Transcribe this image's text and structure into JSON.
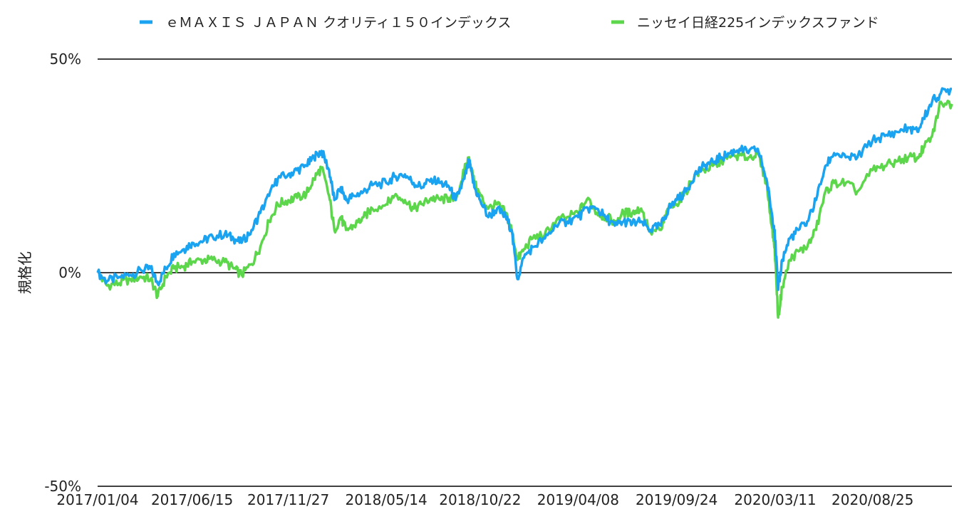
{
  "chart_data": {
    "type": "line",
    "title": "",
    "xlabel": "",
    "ylabel": "規格化",
    "yunit": "%",
    "ylim": [
      -50,
      50
    ],
    "yticks": [
      {
        "value": 50,
        "label": "50%"
      },
      {
        "value": 0,
        "label": "0%"
      },
      {
        "value": -50,
        "label": "-50%"
      }
    ],
    "xlim": [
      "2017-01-04",
      "2021-01-08"
    ],
    "xticks": [
      {
        "date": "2017-01-04",
        "label": "2017/01/04"
      },
      {
        "date": "2017-06-15",
        "label": "2017/06/15"
      },
      {
        "date": "2017-11-27",
        "label": "2017/11/27"
      },
      {
        "date": "2018-05-14",
        "label": "2018/05/14"
      },
      {
        "date": "2018-10-22",
        "label": "2018/10/22"
      },
      {
        "date": "2019-04-08",
        "label": "2019/04/08"
      },
      {
        "date": "2019-09-24",
        "label": "2019/09/24"
      },
      {
        "date": "2020-03-11",
        "label": "2020/03/11"
      },
      {
        "date": "2020-08-25",
        "label": "2020/08/25"
      }
    ],
    "grid": true,
    "legend_position": "top",
    "series": [
      {
        "name": "ｅＭＡＸＩＳ ＪＡＰＡＮ クオリティ１５０インデックス",
        "color": "#1aa3f0",
        "points": [
          [
            "2017-01-04",
            0
          ],
          [
            "2017-01-20",
            -2
          ],
          [
            "2017-02-10",
            -1
          ],
          [
            "2017-03-01",
            -0.5
          ],
          [
            "2017-03-20",
            0.5
          ],
          [
            "2017-04-05",
            1
          ],
          [
            "2017-04-17",
            -2.5
          ],
          [
            "2017-05-01",
            1
          ],
          [
            "2017-05-15",
            4.5
          ],
          [
            "2017-06-01",
            5.5
          ],
          [
            "2017-06-15",
            7
          ],
          [
            "2017-07-05",
            7.5
          ],
          [
            "2017-07-20",
            8.5
          ],
          [
            "2017-08-10",
            9
          ],
          [
            "2017-08-25",
            8
          ],
          [
            "2017-09-08",
            7
          ],
          [
            "2017-09-25",
            10
          ],
          [
            "2017-10-10",
            14
          ],
          [
            "2017-10-25",
            18
          ],
          [
            "2017-11-09",
            22
          ],
          [
            "2017-11-27",
            23
          ],
          [
            "2017-12-12",
            24
          ],
          [
            "2017-12-28",
            25
          ],
          [
            "2018-01-10",
            27
          ],
          [
            "2018-01-23",
            28.5
          ],
          [
            "2018-02-05",
            24
          ],
          [
            "2018-02-14",
            17
          ],
          [
            "2018-02-25",
            20
          ],
          [
            "2018-03-06",
            17
          ],
          [
            "2018-03-20",
            18
          ],
          [
            "2018-04-05",
            19
          ],
          [
            "2018-04-20",
            20.5
          ],
          [
            "2018-05-14",
            21
          ],
          [
            "2018-05-28",
            22.5
          ],
          [
            "2018-06-15",
            23
          ],
          [
            "2018-06-30",
            21
          ],
          [
            "2018-07-15",
            20
          ],
          [
            "2018-07-30",
            22
          ],
          [
            "2018-08-15",
            21
          ],
          [
            "2018-08-30",
            20
          ],
          [
            "2018-09-10",
            17
          ],
          [
            "2018-09-25",
            22
          ],
          [
            "2018-10-03",
            26
          ],
          [
            "2018-10-12",
            20
          ],
          [
            "2018-10-22",
            17
          ],
          [
            "2018-11-05",
            13
          ],
          [
            "2018-11-20",
            15
          ],
          [
            "2018-12-05",
            13
          ],
          [
            "2018-12-15",
            10
          ],
          [
            "2018-12-25",
            -1.5
          ],
          [
            "2019-01-05",
            3.5
          ],
          [
            "2019-01-20",
            6
          ],
          [
            "2019-02-10",
            8
          ],
          [
            "2019-03-01",
            11
          ],
          [
            "2019-03-20",
            12
          ],
          [
            "2019-04-08",
            13
          ],
          [
            "2019-04-25",
            15
          ],
          [
            "2019-05-10",
            15
          ],
          [
            "2019-05-25",
            13
          ],
          [
            "2019-06-10",
            11
          ],
          [
            "2019-06-25",
            12
          ],
          [
            "2019-07-10",
            11.5
          ],
          [
            "2019-07-25",
            12
          ],
          [
            "2019-08-10",
            10
          ],
          [
            "2019-08-28",
            11
          ],
          [
            "2019-09-10",
            15
          ],
          [
            "2019-09-24",
            17
          ],
          [
            "2019-10-10",
            19
          ],
          [
            "2019-10-25",
            23
          ],
          [
            "2019-11-10",
            25
          ],
          [
            "2019-11-25",
            26
          ],
          [
            "2019-12-10",
            27
          ],
          [
            "2019-12-25",
            28
          ],
          [
            "2020-01-10",
            29
          ],
          [
            "2020-01-25",
            28
          ],
          [
            "2020-02-10",
            29
          ],
          [
            "2020-02-25",
            22
          ],
          [
            "2020-03-05",
            14
          ],
          [
            "2020-03-10",
            10
          ],
          [
            "2020-03-16",
            -4
          ],
          [
            "2020-03-23",
            3
          ],
          [
            "2020-04-05",
            8
          ],
          [
            "2020-04-20",
            10
          ],
          [
            "2020-05-05",
            12
          ],
          [
            "2020-05-20",
            17
          ],
          [
            "2020-06-05",
            25
          ],
          [
            "2020-06-20",
            28
          ],
          [
            "2020-07-10",
            27
          ],
          [
            "2020-07-30",
            27
          ],
          [
            "2020-08-25",
            31
          ],
          [
            "2020-09-15",
            32
          ],
          [
            "2020-10-05",
            33
          ],
          [
            "2020-10-25",
            34
          ],
          [
            "2020-11-10",
            33
          ],
          [
            "2020-11-20",
            36
          ],
          [
            "2020-12-05",
            40
          ],
          [
            "2020-12-20",
            42
          ],
          [
            "2021-01-08",
            43
          ]
        ]
      },
      {
        "name": "ニッセイ日経225インデックスファンド",
        "color": "#5cd64a",
        "points": [
          [
            "2017-01-04",
            0
          ],
          [
            "2017-01-20",
            -3
          ],
          [
            "2017-02-10",
            -2.5
          ],
          [
            "2017-03-01",
            -1.5
          ],
          [
            "2017-03-20",
            -1
          ],
          [
            "2017-04-05",
            -1.5
          ],
          [
            "2017-04-17",
            -5.5
          ],
          [
            "2017-05-01",
            -1
          ],
          [
            "2017-05-15",
            1
          ],
          [
            "2017-06-01",
            1.5
          ],
          [
            "2017-06-15",
            2.5
          ],
          [
            "2017-07-05",
            3
          ],
          [
            "2017-07-20",
            3
          ],
          [
            "2017-08-10",
            2.5
          ],
          [
            "2017-08-25",
            1
          ],
          [
            "2017-09-08",
            -0.5
          ],
          [
            "2017-09-25",
            2
          ],
          [
            "2017-10-10",
            6
          ],
          [
            "2017-10-25",
            12
          ],
          [
            "2017-11-09",
            16
          ],
          [
            "2017-11-27",
            17
          ],
          [
            "2017-12-12",
            17.5
          ],
          [
            "2017-12-28",
            18.5
          ],
          [
            "2018-01-10",
            22
          ],
          [
            "2018-01-23",
            24.5
          ],
          [
            "2018-02-05",
            18
          ],
          [
            "2018-02-14",
            10
          ],
          [
            "2018-02-25",
            13
          ],
          [
            "2018-03-06",
            10
          ],
          [
            "2018-03-20",
            11
          ],
          [
            "2018-04-05",
            13
          ],
          [
            "2018-04-20",
            15
          ],
          [
            "2018-05-14",
            16
          ],
          [
            "2018-05-28",
            18
          ],
          [
            "2018-06-15",
            17
          ],
          [
            "2018-06-30",
            15
          ],
          [
            "2018-07-15",
            16
          ],
          [
            "2018-07-30",
            17.5
          ],
          [
            "2018-08-15",
            17
          ],
          [
            "2018-08-30",
            17.5
          ],
          [
            "2018-09-10",
            17
          ],
          [
            "2018-09-25",
            24
          ],
          [
            "2018-10-03",
            27
          ],
          [
            "2018-10-12",
            21
          ],
          [
            "2018-10-22",
            18
          ],
          [
            "2018-11-05",
            15
          ],
          [
            "2018-11-20",
            16
          ],
          [
            "2018-12-05",
            14
          ],
          [
            "2018-12-15",
            10
          ],
          [
            "2018-12-25",
            3
          ],
          [
            "2019-01-05",
            5.5
          ],
          [
            "2019-01-20",
            8
          ],
          [
            "2019-02-10",
            9
          ],
          [
            "2019-03-01",
            12
          ],
          [
            "2019-03-20",
            13
          ],
          [
            "2019-04-08",
            14
          ],
          [
            "2019-04-25",
            17.5
          ],
          [
            "2019-05-10",
            14
          ],
          [
            "2019-05-25",
            13
          ],
          [
            "2019-06-10",
            12
          ],
          [
            "2019-06-25",
            14
          ],
          [
            "2019-07-10",
            14
          ],
          [
            "2019-07-25",
            15
          ],
          [
            "2019-08-10",
            9.5
          ],
          [
            "2019-08-28",
            10
          ],
          [
            "2019-09-10",
            15
          ],
          [
            "2019-09-24",
            16
          ],
          [
            "2019-10-10",
            19
          ],
          [
            "2019-10-25",
            23
          ],
          [
            "2019-11-10",
            24
          ],
          [
            "2019-11-25",
            25
          ],
          [
            "2019-12-10",
            26
          ],
          [
            "2019-12-25",
            27
          ],
          [
            "2020-01-10",
            27.5
          ],
          [
            "2020-01-25",
            27
          ],
          [
            "2020-02-10",
            28
          ],
          [
            "2020-02-25",
            21
          ],
          [
            "2020-03-05",
            11
          ],
          [
            "2020-03-10",
            6
          ],
          [
            "2020-03-16",
            -10.5
          ],
          [
            "2020-03-23",
            -3.5
          ],
          [
            "2020-04-05",
            3
          ],
          [
            "2020-04-20",
            5
          ],
          [
            "2020-05-05",
            6
          ],
          [
            "2020-05-20",
            10
          ],
          [
            "2020-06-05",
            19
          ],
          [
            "2020-06-20",
            21
          ],
          [
            "2020-07-10",
            21
          ],
          [
            "2020-07-30",
            19
          ],
          [
            "2020-08-25",
            24
          ],
          [
            "2020-09-15",
            25
          ],
          [
            "2020-10-05",
            26
          ],
          [
            "2020-10-25",
            27
          ],
          [
            "2020-11-10",
            27
          ],
          [
            "2020-11-20",
            29
          ],
          [
            "2020-12-05",
            32
          ],
          [
            "2020-12-20",
            40
          ],
          [
            "2021-01-08",
            39.5
          ]
        ]
      }
    ]
  }
}
